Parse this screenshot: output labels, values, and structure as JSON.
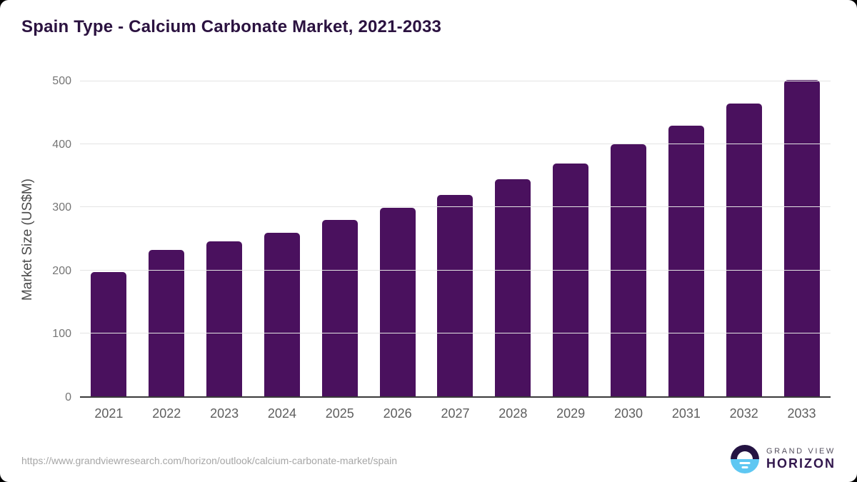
{
  "chart_data": {
    "type": "bar",
    "title": "Spain Type - Calcium Carbonate Market, 2021-2033",
    "categories": [
      "2021",
      "2022",
      "2023",
      "2024",
      "2025",
      "2026",
      "2027",
      "2028",
      "2029",
      "2030",
      "2031",
      "2032",
      "2033"
    ],
    "values": [
      197,
      232,
      246,
      260,
      280,
      299,
      320,
      345,
      370,
      400,
      430,
      465,
      502
    ],
    "xlabel": "",
    "ylabel": "Market Size (US$M)",
    "ylim": [
      0,
      500
    ],
    "yticks": [
      0,
      100,
      200,
      300,
      400,
      500
    ],
    "grid": true,
    "legend": false,
    "bar_color": "#4a115e"
  },
  "footer": {
    "source_url": "https://www.grandviewresearch.com/horizon/outlook/calcium-carbonate-market/spain",
    "brand": {
      "line1": "GRAND VIEW",
      "line2": "HORIZON"
    }
  },
  "colors": {
    "bar": "#4a115e",
    "title": "#2b1240",
    "axis_line": "#3a3a3a",
    "grid_line": "#e4e4e4",
    "y_tick": "#757575",
    "x_tick": "#5e5e5e",
    "y_axis_title": "#4c4c4c",
    "source_url": "#a6a6a6",
    "logo_dark": "#241342",
    "logo_blue": "#5ec7f2",
    "brand_top": "#55505f",
    "brand_bottom": "#32174d",
    "page_bg": "#000000",
    "card_bg": "#ffffff"
  }
}
